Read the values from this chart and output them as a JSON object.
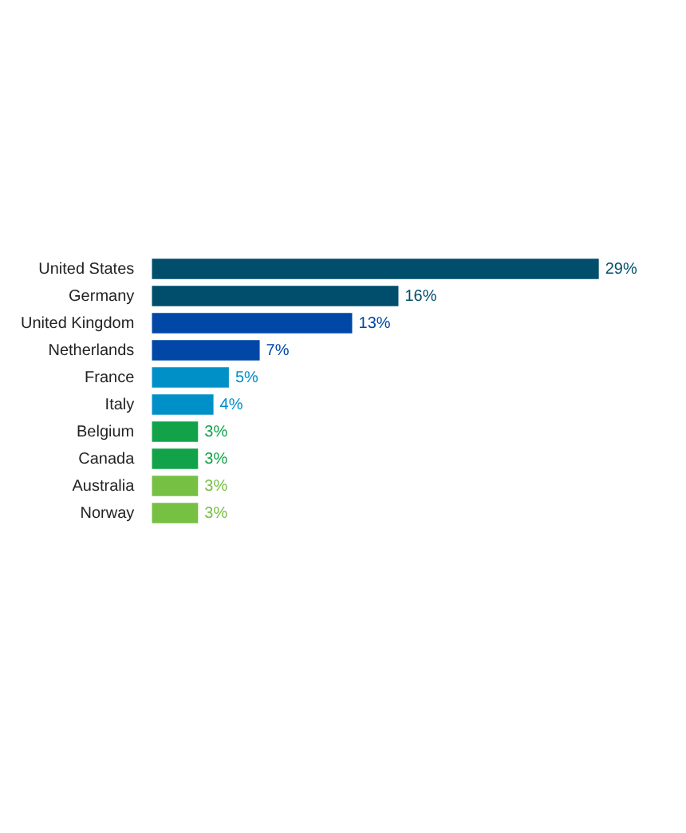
{
  "chart_data": {
    "type": "bar",
    "orientation": "horizontal",
    "categories": [
      "United States",
      "Germany",
      "United Kingdom",
      "Netherlands",
      "France",
      "Italy",
      "Belgium",
      "Canada",
      "Australia",
      "Norway"
    ],
    "values": [
      29,
      16,
      13,
      7,
      5,
      4,
      3,
      3,
      3,
      3
    ],
    "colors": [
      "#004e6b",
      "#004e6b",
      "#0047a6",
      "#0047a6",
      "#0090c8",
      "#0090c8",
      "#12a34a",
      "#12a34a",
      "#76c043",
      "#76c043"
    ],
    "value_labels": [
      "29%",
      "16%",
      "13%",
      "7%",
      "5%",
      "4%",
      "3%",
      "3%",
      "3%",
      "3%"
    ],
    "grid": false,
    "legend": false
  }
}
